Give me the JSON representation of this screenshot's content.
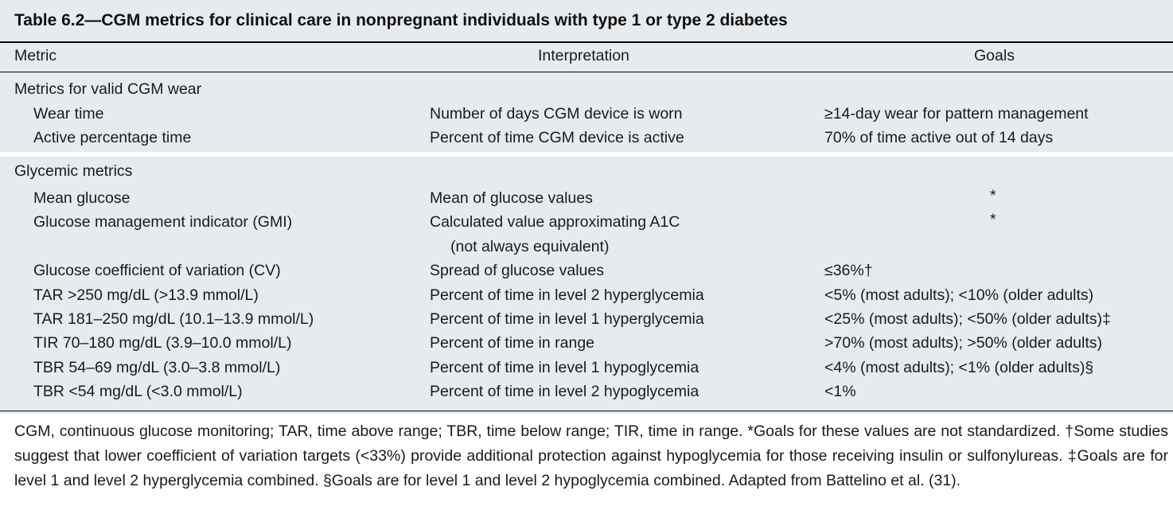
{
  "title": "Table 6.2—CGM metrics for clinical care in nonpregnant individuals with type 1 or type 2 diabetes",
  "headers": {
    "metric": "Metric",
    "interpretation": "Interpretation",
    "goals": "Goals"
  },
  "section_valid": {
    "label": "Metrics for valid CGM wear",
    "rows": [
      {
        "metric": "Wear time",
        "interpretation": "Number of days CGM device is worn",
        "goal": "≥14-day wear for pattern management"
      },
      {
        "metric": "Active percentage time",
        "interpretation": "Percent of time CGM device is active",
        "goal": "70% of time active out of 14 days"
      }
    ]
  },
  "section_glycemic": {
    "label": "Glycemic metrics",
    "rows": [
      {
        "metric": "Mean glucose",
        "interpretation": "Mean of glucose values",
        "goal": "*"
      },
      {
        "metric": "Glucose management indicator (GMI)",
        "interpretation": "Calculated value approximating A1C",
        "interpretation_cont": "(not always equivalent)",
        "goal": "*"
      },
      {
        "metric": "Glucose coefficient of variation (CV)",
        "interpretation": "Spread of glucose values",
        "goal": "≤36%†"
      },
      {
        "metric": "TAR >250 mg/dL (>13.9 mmol/L)",
        "interpretation": "Percent of time in level 2 hyperglycemia",
        "goal": "<5% (most adults); <10% (older adults)"
      },
      {
        "metric": "TAR 181–250 mg/dL (10.1–13.9 mmol/L)",
        "interpretation": "Percent of time in level 1 hyperglycemia",
        "goal": "<25% (most adults); <50% (older adults)‡"
      },
      {
        "metric": "TIR 70–180 mg/dL (3.9–10.0 mmol/L)",
        "interpretation": "Percent of time in range",
        "goal": ">70% (most adults); >50% (older adults)"
      },
      {
        "metric": "TBR 54–69 mg/dL (3.0–3.8 mmol/L)",
        "interpretation": "Percent of time in level 1 hypoglycemia",
        "goal": "<4% (most adults); <1% (older adults)§"
      },
      {
        "metric": "TBR <54 mg/dL (<3.0 mmol/L)",
        "interpretation": "Percent of time in level 2 hypoglycemia",
        "goal": "<1%"
      }
    ]
  },
  "footnote": "CGM, continuous glucose monitoring; TAR, time above range; TBR, time below range; TIR, time in range. *Goals for these values are not standardized. †Some studies suggest that lower coefficient of variation targets (<33%) provide additional protection against hypoglycemia for those receiving insulin or sulfonylureas. ‡Goals are for level 1 and level 2 hyperglycemia combined. §Goals are for level 1 and level 2 hypoglycemia combined. Adapted from Battelino et al. (31)."
}
